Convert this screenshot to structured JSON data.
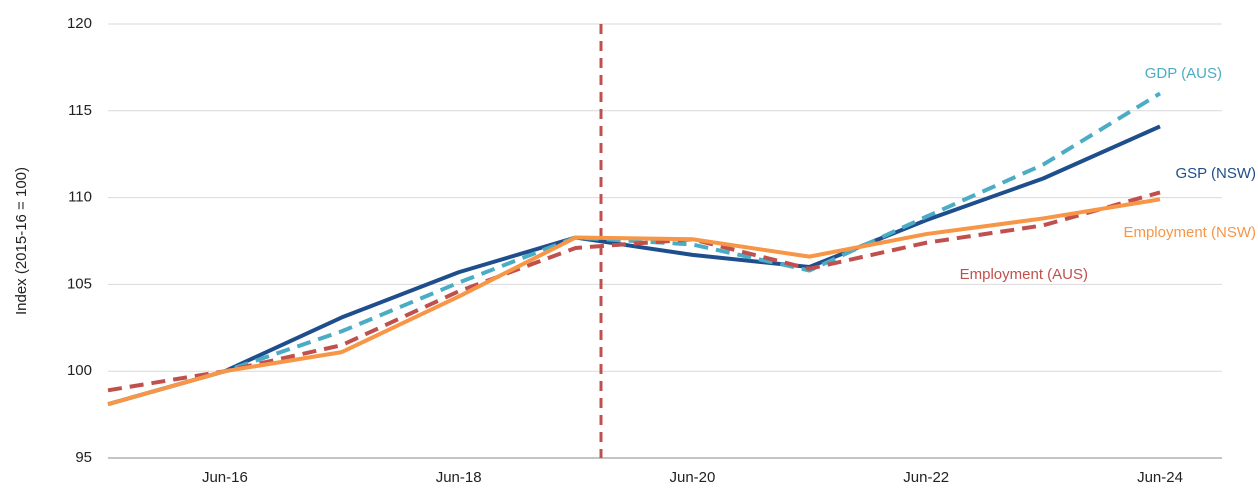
{
  "chart_data": {
    "type": "line",
    "y_label": "Index (2015-16 = 100)",
    "categories": [
      null,
      "Jun-16",
      null,
      "Jun-18",
      null,
      "Jun-20",
      null,
      "Jun-22",
      null,
      "Jun-24"
    ],
    "ylim": [
      95,
      120
    ],
    "yticks": [
      95,
      100,
      105,
      110,
      115,
      120
    ],
    "grid": true,
    "series": [
      {
        "name": "GSP (NSW)",
        "color": "#1f4e8c",
        "dashed": false,
        "values": [
          98.1,
          100,
          103.1,
          105.7,
          107.7,
          106.7,
          106.0,
          108.7,
          111.1,
          114.1
        ]
      },
      {
        "name": "GDP (AUS)",
        "color": "#4bacc6",
        "dashed": true,
        "values": [
          98.1,
          100,
          102.3,
          105.1,
          107.7,
          107.3,
          105.8,
          108.9,
          111.9,
          116.0
        ]
      },
      {
        "name": "Employment (AUS)",
        "color": "#c0504d",
        "dashed": true,
        "values": [
          98.9,
          100,
          101.5,
          104.6,
          107.1,
          107.6,
          105.9,
          107.4,
          108.4,
          110.3
        ]
      },
      {
        "name": "Employment (NSW)",
        "color": "#f79646",
        "dashed": false,
        "values": [
          98.1,
          100,
          101.1,
          104.3,
          107.7,
          107.6,
          106.6,
          107.9,
          108.8,
          109.9
        ]
      }
    ]
  }
}
